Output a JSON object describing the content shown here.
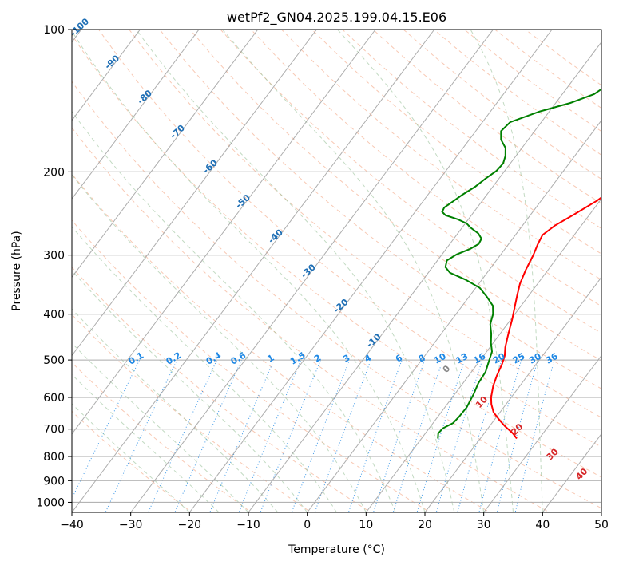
{
  "chart_data": {
    "type": "line",
    "subtype": "skew-t log-p",
    "title": "wetPf2_GN04.2025.199.04.15.E06",
    "xlabel": "Temperature (°C)",
    "ylabel": "Pressure (hPa)",
    "xlim": [
      -40,
      50
    ],
    "ylim": [
      1050,
      100
    ],
    "y_scale": "log",
    "grid": true,
    "x_ticks": [
      -40,
      -30,
      -20,
      -10,
      0,
      10,
      20,
      30,
      40,
      50
    ],
    "y_ticks": [
      100,
      200,
      300,
      400,
      500,
      600,
      700,
      800,
      900,
      1000
    ],
    "mixing_ratio_labels": [
      "0.1",
      "0.2",
      "0.4",
      "0.6",
      "1",
      "1.5",
      "2",
      "3",
      "4",
      "6",
      "8",
      "10",
      "13",
      "16",
      "20",
      "25",
      "30",
      "36"
    ],
    "isotherm_labels": [
      "-100",
      "-90",
      "-80",
      "-70",
      "-60",
      "-50",
      "-40",
      "-30",
      "-20",
      "-10"
    ],
    "dry_adiabat_labels": [
      "0",
      "10",
      "20",
      "30",
      "40"
    ],
    "series": [
      {
        "color": "#ff0000",
        "points": [
          [
            26.2,
            733
          ],
          [
            24.9,
            715
          ],
          [
            22.6,
            690
          ],
          [
            20.9,
            670
          ],
          [
            18.9,
            645
          ],
          [
            17.5,
            620
          ],
          [
            16.6,
            600
          ],
          [
            15.5,
            568
          ],
          [
            14.8,
            540
          ],
          [
            14.2,
            510
          ],
          [
            13.6,
            490
          ],
          [
            12.6,
            470
          ],
          [
            11.4,
            440
          ],
          [
            10.2,
            410
          ],
          [
            9.0,
            385
          ],
          [
            8.0,
            365
          ],
          [
            7.0,
            345
          ],
          [
            6.2,
            322
          ],
          [
            5.6,
            300
          ],
          [
            5.0,
            285
          ],
          [
            4.6,
            272
          ],
          [
            5.5,
            260
          ],
          [
            7.5,
            245
          ],
          [
            9.5,
            230
          ],
          [
            11.0,
            215
          ],
          [
            12.8,
            198
          ],
          [
            15.1,
            182
          ],
          [
            17.4,
            167
          ],
          [
            19.1,
            154
          ],
          [
            20.8,
            142
          ],
          [
            22.6,
            131
          ],
          [
            24.5,
            121
          ],
          [
            26.0,
            113
          ],
          [
            27.4,
            107
          ],
          [
            28.2,
            102
          ],
          [
            28.5,
            100
          ]
        ]
      },
      {
        "color": "#008000",
        "points": [
          [
            12.8,
            733
          ],
          [
            12.2,
            715
          ],
          [
            12.3,
            698
          ],
          [
            13.4,
            680
          ],
          [
            13.6,
            660
          ],
          [
            13.7,
            630
          ],
          [
            13.2,
            590
          ],
          [
            12.6,
            560
          ],
          [
            12.4,
            530
          ],
          [
            11.5,
            500
          ],
          [
            10.9,
            480
          ],
          [
            9.6,
            460
          ],
          [
            8.5,
            440
          ],
          [
            7.1,
            420
          ],
          [
            6.3,
            400
          ],
          [
            5.2,
            384
          ],
          [
            3.1,
            368
          ],
          [
            0.7,
            352
          ],
          [
            -2.8,
            338
          ],
          [
            -6.3,
            327
          ],
          [
            -7.8,
            318
          ],
          [
            -8.4,
            308
          ],
          [
            -7.5,
            299
          ],
          [
            -5.9,
            291
          ],
          [
            -5.1,
            284
          ],
          [
            -5.3,
            277
          ],
          [
            -6.5,
            270
          ],
          [
            -8.4,
            263
          ],
          [
            -9.8,
            257
          ],
          [
            -11.8,
            252
          ],
          [
            -14.4,
            247
          ],
          [
            -15.4,
            243
          ],
          [
            -15.6,
            238
          ],
          [
            -14.9,
            231
          ],
          [
            -14.2,
            224
          ],
          [
            -13.0,
            215
          ],
          [
            -12.3,
            207
          ],
          [
            -11.4,
            199
          ],
          [
            -11.2,
            192
          ],
          [
            -11.8,
            185
          ],
          [
            -12.8,
            178
          ],
          [
            -14.6,
            171
          ],
          [
            -15.7,
            164
          ],
          [
            -15.3,
            157
          ],
          [
            -11.6,
            149
          ],
          [
            -7.5,
            143
          ],
          [
            -4.6,
            137
          ],
          [
            -3.5,
            131
          ],
          [
            -3.2,
            126
          ],
          [
            -3.1,
            121
          ],
          [
            -2.4,
            117
          ],
          [
            -1.3,
            113
          ],
          [
            0.0,
            109
          ],
          [
            1.3,
            105
          ],
          [
            2.4,
            102
          ],
          [
            2.8,
            100
          ]
        ]
      }
    ]
  }
}
